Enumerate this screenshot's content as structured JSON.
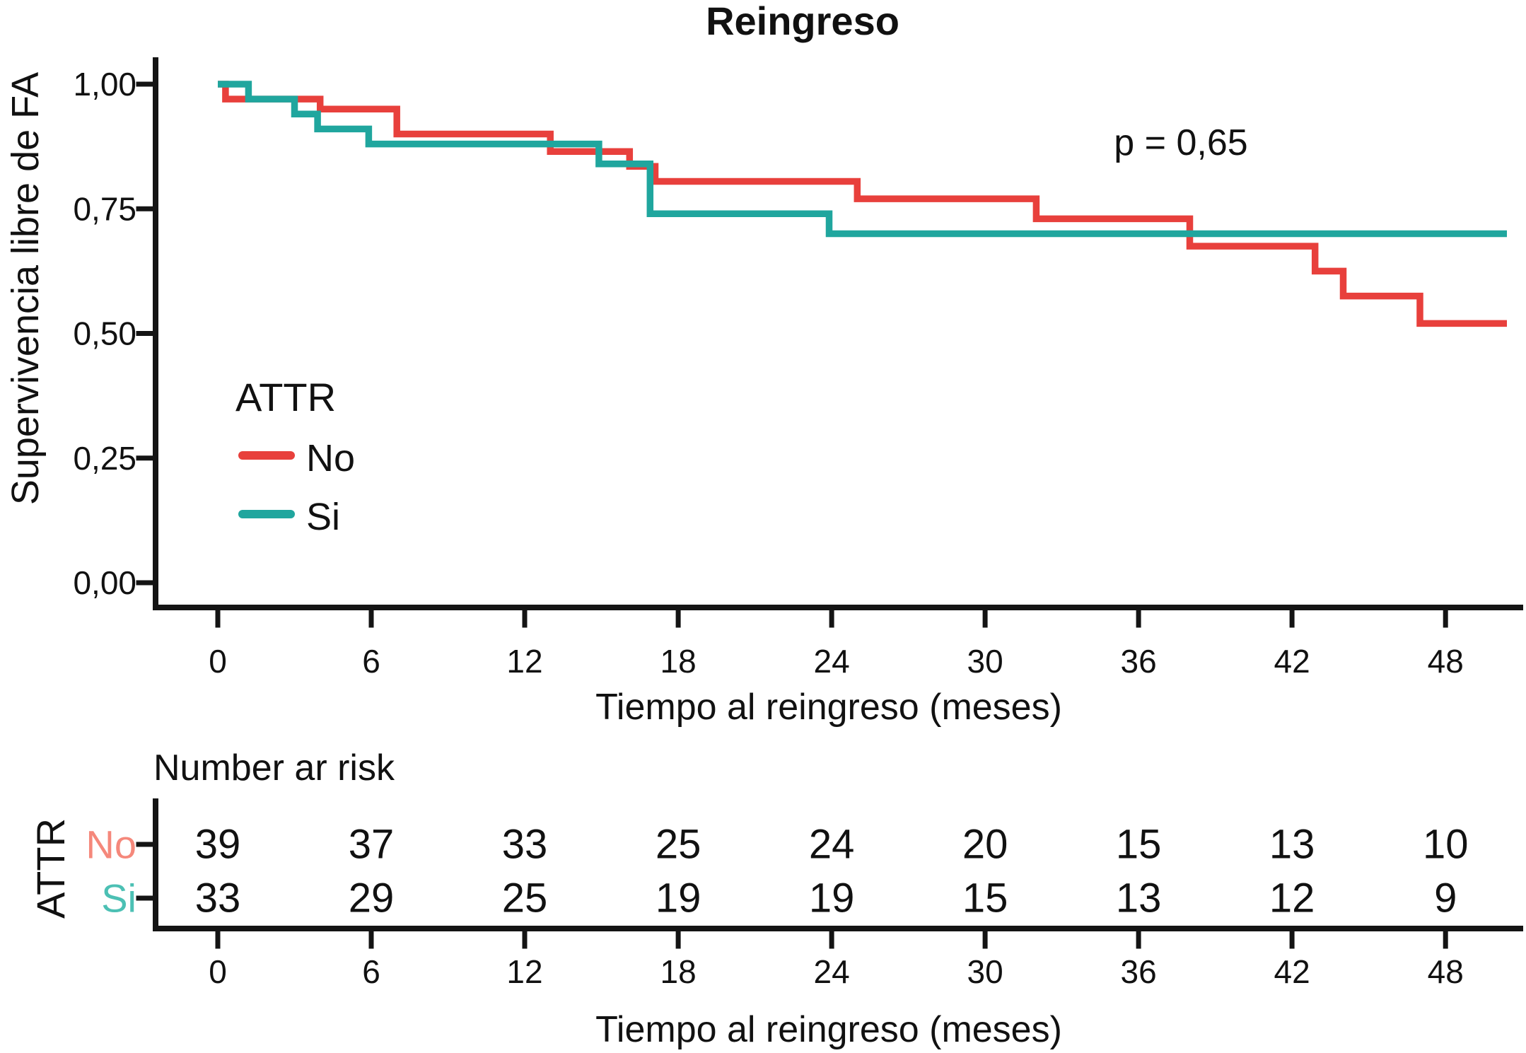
{
  "title": "Reingreso",
  "annotation": {
    "p_value": "p = 0,65"
  },
  "legend": {
    "title": "ATTR",
    "items": [
      {
        "label": "No",
        "color": "#E8403C"
      },
      {
        "label": "Si",
        "color": "#20A69E"
      }
    ]
  },
  "chart_data": {
    "type": "line",
    "subtype": "kaplan-meier-step",
    "title": "Reingreso",
    "xlabel": "Tiempo al reingreso (meses)",
    "ylabel": "Supervivencia libre de FA",
    "xlim": [
      -2.4,
      50.9
    ],
    "ylim": [
      0.0,
      1.05
    ],
    "grid": false,
    "legend_position": "inside-left",
    "x_ticks": [
      0,
      6,
      12,
      18,
      24,
      30,
      36,
      42,
      48
    ],
    "y_ticks": [
      {
        "value": 1.0,
        "label": "1,00"
      },
      {
        "value": 0.75,
        "label": "0,75"
      },
      {
        "value": 0.5,
        "label": "0,50"
      },
      {
        "value": 0.25,
        "label": "0,25"
      },
      {
        "value": 0.0,
        "label": "0,00"
      }
    ],
    "series": [
      {
        "name": "No",
        "color": "#E8403C",
        "end_x": 50.4,
        "steps": [
          [
            0,
            1.0
          ],
          [
            0.3,
            0.97
          ],
          [
            4,
            0.95
          ],
          [
            7,
            0.9
          ],
          [
            13,
            0.865
          ],
          [
            16.1,
            0.835
          ],
          [
            17.1,
            0.805
          ],
          [
            25,
            0.77
          ],
          [
            32,
            0.73
          ],
          [
            38,
            0.675
          ],
          [
            42.9,
            0.625
          ],
          [
            44,
            0.575
          ],
          [
            47,
            0.52
          ]
        ]
      },
      {
        "name": "Si",
        "color": "#20A69E",
        "end_x": 50.4,
        "steps": [
          [
            0,
            1.0
          ],
          [
            1.2,
            0.97
          ],
          [
            3,
            0.94
          ],
          [
            3.9,
            0.91
          ],
          [
            5.9,
            0.88
          ],
          [
            14.9,
            0.84
          ],
          [
            16.9,
            0.74
          ],
          [
            23.9,
            0.7
          ]
        ]
      }
    ]
  },
  "risk_table": {
    "header": "Number ar risk",
    "group_label": "ATTR",
    "xlabel": "Tiempo al reingreso (meses)",
    "rows": [
      {
        "label": "No",
        "label_color": "#F5887B",
        "values": [
          39,
          37,
          33,
          25,
          24,
          20,
          15,
          13,
          10
        ]
      },
      {
        "label": "Si",
        "label_color": "#4CC0B4",
        "values": [
          33,
          29,
          25,
          19,
          19,
          15,
          13,
          12,
          9
        ]
      }
    ]
  }
}
